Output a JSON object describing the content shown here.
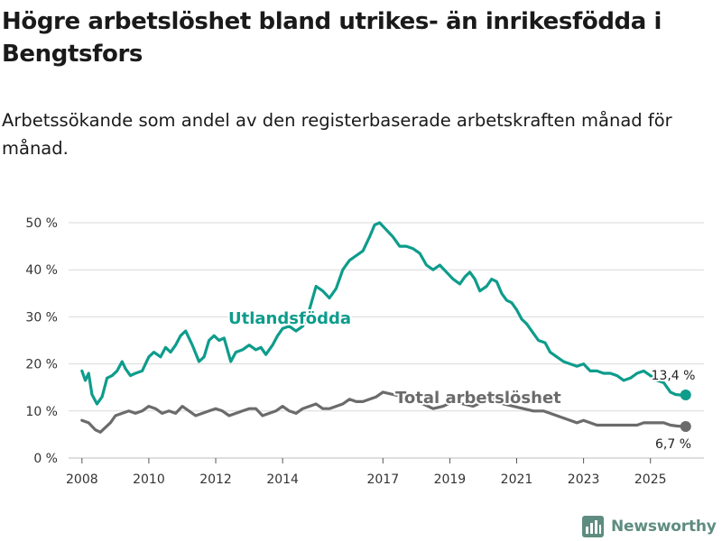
{
  "chart_data": {
    "type": "line",
    "title": "Högre arbetslöshet bland utrikes- än inrikesfödda i Bengtsfors",
    "subtitle": "Arbetssökande som andel av den registerbaserade arbetskraften månad för månad.",
    "x_tick_labels": [
      "2008",
      "2010",
      "2012",
      "2014",
      "2017",
      "2019",
      "2021",
      "2023",
      "2025"
    ],
    "y_tick_labels": [
      "0 %",
      "10 %",
      "20 %",
      "30 %",
      "40 %",
      "50 %"
    ],
    "ylim": [
      0,
      50
    ],
    "grid": true,
    "colors": {
      "foreign": "#0e9c8c",
      "total": "#6b6b6b",
      "grid": "#d9d9d9",
      "text": "#333333"
    },
    "series": [
      {
        "name": "Utlandsfödda",
        "key": "foreign",
        "end_label": "13,4 %",
        "x": [
          2008.0,
          2008.1,
          2008.2,
          2008.3,
          2008.45,
          2008.6,
          2008.75,
          2008.9,
          2009.05,
          2009.2,
          2009.3,
          2009.45,
          2009.6,
          2009.8,
          2010.0,
          2010.15,
          2010.35,
          2010.5,
          2010.65,
          2010.8,
          2010.95,
          2011.1,
          2011.3,
          2011.5,
          2011.65,
          2011.8,
          2011.95,
          2012.1,
          2012.25,
          2012.45,
          2012.6,
          2012.8,
          2013.0,
          2013.2,
          2013.35,
          2013.5,
          2013.7,
          2013.85,
          2014.0,
          2014.2,
          2014.4,
          2014.6,
          2014.8,
          2015.0,
          2015.2,
          2015.4,
          2015.6,
          2015.8,
          2016.0,
          2016.2,
          2016.4,
          2016.6,
          2016.75,
          2016.9,
          2017.1,
          2017.3,
          2017.5,
          2017.7,
          2017.9,
          2018.1,
          2018.3,
          2018.5,
          2018.7,
          2018.9,
          2019.1,
          2019.3,
          2019.45,
          2019.6,
          2019.75,
          2019.9,
          2020.1,
          2020.25,
          2020.4,
          2020.55,
          2020.7,
          2020.85,
          2021.0,
          2021.15,
          2021.3,
          2021.5,
          2021.65,
          2021.85,
          2022.0,
          2022.2,
          2022.4,
          2022.6,
          2022.8,
          2023.0,
          2023.2,
          2023.4,
          2023.6,
          2023.8,
          2024.0,
          2024.2,
          2024.4,
          2024.6,
          2024.8,
          2025.0,
          2025.2,
          2025.4,
          2025.6,
          2025.75,
          2025.9,
          2026.0
        ],
        "values": [
          18.5,
          16.5,
          18.0,
          13.5,
          11.5,
          13.0,
          17.0,
          17.5,
          18.5,
          20.5,
          19.0,
          17.5,
          18.0,
          18.5,
          21.5,
          22.5,
          21.5,
          23.5,
          22.5,
          24.0,
          26.0,
          27.0,
          24.0,
          20.5,
          21.5,
          25.0,
          26.0,
          25.0,
          25.5,
          20.5,
          22.5,
          23.0,
          24.0,
          23.0,
          23.5,
          22.0,
          24.0,
          26.0,
          27.5,
          28.0,
          27.0,
          28.0,
          31.5,
          36.5,
          35.5,
          34.0,
          36.0,
          40.0,
          42.0,
          43.0,
          44.0,
          47.0,
          49.5,
          50.0,
          48.5,
          47.0,
          45.0,
          45.0,
          44.5,
          43.5,
          41.0,
          40.0,
          41.0,
          39.5,
          38.0,
          37.0,
          38.5,
          39.5,
          38.0,
          35.5,
          36.5,
          38.0,
          37.5,
          35.0,
          33.5,
          33.0,
          31.5,
          29.5,
          28.5,
          26.5,
          25.0,
          24.5,
          22.5,
          21.5,
          20.5,
          20.0,
          19.5,
          20.0,
          18.5,
          18.5,
          18.0,
          18.0,
          17.5,
          16.5,
          17.0,
          18.0,
          18.5,
          17.5,
          16.5,
          16.0,
          14.0,
          13.5,
          13.4,
          13.4
        ]
      },
      {
        "name": "Total arbetslöshet",
        "key": "total",
        "end_label": "6,7 %",
        "x": [
          2008.0,
          2008.2,
          2008.4,
          2008.55,
          2008.7,
          2008.85,
          2009.0,
          2009.2,
          2009.4,
          2009.6,
          2009.8,
          2010.0,
          2010.2,
          2010.4,
          2010.6,
          2010.8,
          2011.0,
          2011.2,
          2011.4,
          2011.6,
          2011.8,
          2012.0,
          2012.2,
          2012.4,
          2012.6,
          2012.8,
          2013.0,
          2013.2,
          2013.4,
          2013.6,
          2013.8,
          2014.0,
          2014.2,
          2014.4,
          2014.6,
          2014.8,
          2015.0,
          2015.2,
          2015.4,
          2015.6,
          2015.8,
          2016.0,
          2016.2,
          2016.4,
          2016.6,
          2016.8,
          2017.0,
          2017.3,
          2017.6,
          2017.9,
          2018.2,
          2018.5,
          2018.8,
          2019.1,
          2019.4,
          2019.7,
          2020.0,
          2020.3,
          2020.6,
          2020.9,
          2021.2,
          2021.5,
          2021.8,
          2022.0,
          2022.2,
          2022.4,
          2022.6,
          2022.8,
          2023.0,
          2023.2,
          2023.4,
          2023.6,
          2023.8,
          2024.0,
          2024.2,
          2024.4,
          2024.6,
          2024.8,
          2025.0,
          2025.2,
          2025.4,
          2025.6,
          2025.8,
          2026.0
        ],
        "values": [
          8.0,
          7.5,
          6.0,
          5.5,
          6.5,
          7.5,
          9.0,
          9.5,
          10.0,
          9.5,
          10.0,
          11.0,
          10.5,
          9.5,
          10.0,
          9.5,
          11.0,
          10.0,
          9.0,
          9.5,
          10.0,
          10.5,
          10.0,
          9.0,
          9.5,
          10.0,
          10.5,
          10.5,
          9.0,
          9.5,
          10.0,
          11.0,
          10.0,
          9.5,
          10.5,
          11.0,
          11.5,
          10.5,
          10.5,
          11.0,
          11.5,
          12.5,
          12.0,
          12.0,
          12.5,
          13.0,
          14.0,
          13.5,
          13.0,
          12.5,
          11.5,
          10.5,
          11.0,
          12.0,
          11.5,
          11.0,
          12.0,
          12.5,
          11.5,
          11.0,
          10.5,
          10.0,
          10.0,
          9.5,
          9.0,
          8.5,
          8.0,
          7.5,
          8.0,
          7.5,
          7.0,
          7.0,
          7.0,
          7.0,
          7.0,
          7.0,
          7.0,
          7.5,
          7.5,
          7.5,
          7.5,
          7.0,
          6.8,
          6.7
        ]
      }
    ]
  },
  "brand": {
    "name": "Newsworthy"
  }
}
